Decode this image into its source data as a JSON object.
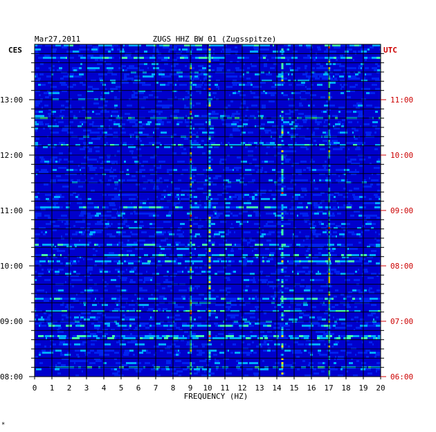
{
  "chart_data": {
    "type": "heatmap",
    "date": "Mar27,2011",
    "title": "ZUGS HHZ BW 01 (Zugsspitze)",
    "left_axis_label": "CES",
    "right_axis_label": "UTC",
    "xlabel": "FREQUENCY (HZ)",
    "x_ticks": [
      0,
      1,
      2,
      3,
      4,
      5,
      6,
      7,
      8,
      9,
      10,
      11,
      12,
      13,
      14,
      15,
      16,
      17,
      18,
      19,
      20
    ],
    "xlim": [
      0,
      20
    ],
    "left_time_ticks": [
      "13:00",
      "12:00",
      "11:00",
      "10:00",
      "09:00",
      "08:00"
    ],
    "right_time_ticks": [
      "11:00",
      "10:00",
      "09:00",
      "08:00",
      "07:00",
      "06:00"
    ],
    "time_range_local": [
      "08:00",
      "13:48"
    ],
    "colors": {
      "background": "#0000cc",
      "low": "#0022ee",
      "mid": "#00aaff",
      "high": "#44ffaa",
      "peak": "#ffee00",
      "extreme": "#ff3300",
      "utc_text": "#cc0000",
      "text": "#000000"
    },
    "persistent_peaks_hz": [
      9.0,
      10.1,
      14.3,
      17.0
    ],
    "corner_mark": "*"
  }
}
